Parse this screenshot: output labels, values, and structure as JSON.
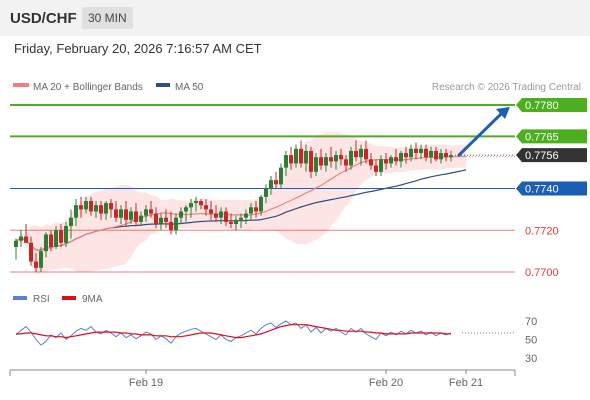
{
  "header": {
    "symbol": "USD/CHF",
    "timeframe": "30 MIN"
  },
  "datetime": "Friday, February 20, 2026 7:16:57 AM CET",
  "legend": {
    "ma20": "MA 20 + Bollinger Bands",
    "ma50": "MA 50",
    "credit": "Research © 2026 Trading Central",
    "rsi": "RSI",
    "rsi_ma": "9MA"
  },
  "colors": {
    "ma20": "#f08080",
    "ma50": "#2f4f7f",
    "band_fill": "#fde0e0",
    "bull": "#2e7d32",
    "bear": "#c62828",
    "resistance": "#4caf20",
    "pivot": "#1a5fb4",
    "support": "#e53935",
    "current": "#333333",
    "rsi": "#5b7fd4",
    "rsi_ma": "#e01010",
    "arrow": "#1a5fb4"
  },
  "chart_data": {
    "type": "candlestick",
    "ylim": [
      0.769,
      0.7785
    ],
    "x_ticks": [
      {
        "label": "Feb 19",
        "index": 26
      },
      {
        "label": "Feb 20",
        "index": 74
      },
      {
        "label": "Feb 21",
        "index": 90
      }
    ],
    "levels": [
      {
        "value": 0.778,
        "label": "0.7780",
        "kind": "resistance"
      },
      {
        "value": 0.7765,
        "label": "0.7765",
        "kind": "resistance"
      },
      {
        "value": 0.7756,
        "label": "0.7756",
        "kind": "current"
      },
      {
        "value": 0.774,
        "label": "0.7740",
        "kind": "pivot"
      },
      {
        "value": 0.772,
        "label": "0.7720",
        "kind": "support"
      },
      {
        "value": 0.77,
        "label": "0.7700",
        "kind": "support"
      }
    ],
    "candles": [
      [
        0.7712,
        0.7716,
        0.7706,
        0.7715
      ],
      [
        0.7715,
        0.772,
        0.7712,
        0.7717
      ],
      [
        0.7717,
        0.7723,
        0.7714,
        0.7714
      ],
      [
        0.7714,
        0.7717,
        0.7703,
        0.7705
      ],
      [
        0.7705,
        0.7709,
        0.77,
        0.7702
      ],
      [
        0.7702,
        0.7712,
        0.77,
        0.771
      ],
      [
        0.771,
        0.7719,
        0.7707,
        0.7718
      ],
      [
        0.7718,
        0.772,
        0.771,
        0.7712
      ],
      [
        0.7712,
        0.7722,
        0.7711,
        0.772
      ],
      [
        0.772,
        0.7723,
        0.7712,
        0.7714
      ],
      [
        0.7714,
        0.7724,
        0.7712,
        0.7722
      ],
      [
        0.7722,
        0.773,
        0.7716,
        0.7726
      ],
      [
        0.7726,
        0.7735,
        0.7722,
        0.7732
      ],
      [
        0.7732,
        0.7736,
        0.7726,
        0.773
      ],
      [
        0.773,
        0.7736,
        0.7728,
        0.7734
      ],
      [
        0.7734,
        0.7736,
        0.7727,
        0.7729
      ],
      [
        0.7729,
        0.7734,
        0.7726,
        0.7732
      ],
      [
        0.7732,
        0.7734,
        0.7725,
        0.7728
      ],
      [
        0.7728,
        0.7734,
        0.7725,
        0.7733
      ],
      [
        0.7733,
        0.7735,
        0.7726,
        0.773
      ],
      [
        0.773,
        0.7734,
        0.7724,
        0.7726
      ],
      [
        0.7726,
        0.7732,
        0.7723,
        0.773
      ],
      [
        0.773,
        0.7734,
        0.7722,
        0.7725
      ],
      [
        0.7725,
        0.7731,
        0.7723,
        0.7729
      ],
      [
        0.7729,
        0.7733,
        0.7722,
        0.7724
      ],
      [
        0.7724,
        0.7729,
        0.7722,
        0.7727
      ],
      [
        0.7727,
        0.7732,
        0.7724,
        0.773
      ],
      [
        0.773,
        0.7734,
        0.7726,
        0.7728
      ],
      [
        0.7728,
        0.7731,
        0.7721,
        0.7723
      ],
      [
        0.7723,
        0.7728,
        0.772,
        0.7726
      ],
      [
        0.7726,
        0.773,
        0.7721,
        0.7724
      ],
      [
        0.7724,
        0.7729,
        0.7718,
        0.772
      ],
      [
        0.772,
        0.7728,
        0.7718,
        0.7726
      ],
      [
        0.7726,
        0.7731,
        0.7723,
        0.7729
      ],
      [
        0.7729,
        0.7732,
        0.7724,
        0.7731
      ],
      [
        0.7731,
        0.7735,
        0.7726,
        0.7733
      ],
      [
        0.7733,
        0.7736,
        0.7729,
        0.7734
      ],
      [
        0.7734,
        0.7735,
        0.773,
        0.7732
      ],
      [
        0.7732,
        0.7735,
        0.7727,
        0.773
      ],
      [
        0.773,
        0.7734,
        0.7725,
        0.7728
      ],
      [
        0.7728,
        0.7732,
        0.7724,
        0.7726
      ],
      [
        0.7726,
        0.7731,
        0.7723,
        0.7729
      ],
      [
        0.7729,
        0.7731,
        0.7722,
        0.7724
      ],
      [
        0.7724,
        0.7728,
        0.7721,
        0.7723
      ],
      [
        0.7723,
        0.7727,
        0.772,
        0.7725
      ],
      [
        0.7725,
        0.7728,
        0.7721,
        0.7726
      ],
      [
        0.7726,
        0.773,
        0.7723,
        0.7728
      ],
      [
        0.7728,
        0.7733,
        0.7725,
        0.7731
      ],
      [
        0.7731,
        0.7734,
        0.7726,
        0.7729
      ],
      [
        0.7729,
        0.7737,
        0.7727,
        0.7736
      ],
      [
        0.7736,
        0.7742,
        0.7733,
        0.774
      ],
      [
        0.774,
        0.7746,
        0.7737,
        0.7744
      ],
      [
        0.7744,
        0.7748,
        0.774,
        0.7742
      ],
      [
        0.7742,
        0.7752,
        0.774,
        0.775
      ],
      [
        0.775,
        0.7758,
        0.7746,
        0.7756
      ],
      [
        0.7756,
        0.776,
        0.7749,
        0.7752
      ],
      [
        0.7752,
        0.7761,
        0.775,
        0.7759
      ],
      [
        0.7759,
        0.7763,
        0.775,
        0.7752
      ],
      [
        0.7752,
        0.7761,
        0.7748,
        0.7758
      ],
      [
        0.7758,
        0.776,
        0.7745,
        0.7748
      ],
      [
        0.7748,
        0.7757,
        0.7746,
        0.7755
      ],
      [
        0.7755,
        0.7759,
        0.7749,
        0.7751
      ],
      [
        0.7751,
        0.7757,
        0.7748,
        0.7755
      ],
      [
        0.7755,
        0.776,
        0.775,
        0.7753
      ],
      [
        0.7753,
        0.7758,
        0.7749,
        0.7756
      ],
      [
        0.7756,
        0.7759,
        0.7751,
        0.7754
      ],
      [
        0.7754,
        0.7756,
        0.7748,
        0.7751
      ],
      [
        0.7751,
        0.776,
        0.7749,
        0.7758
      ],
      [
        0.7758,
        0.7763,
        0.7753,
        0.7755
      ],
      [
        0.7755,
        0.7761,
        0.7751,
        0.7759
      ],
      [
        0.7759,
        0.7763,
        0.7752,
        0.7754
      ],
      [
        0.7754,
        0.7757,
        0.7749,
        0.7751
      ],
      [
        0.7751,
        0.7754,
        0.7746,
        0.7748
      ],
      [
        0.7748,
        0.7756,
        0.7746,
        0.7754
      ],
      [
        0.7754,
        0.7757,
        0.7749,
        0.7752
      ],
      [
        0.7752,
        0.7756,
        0.775,
        0.7755
      ],
      [
        0.7755,
        0.7759,
        0.7751,
        0.7753
      ],
      [
        0.7753,
        0.7758,
        0.775,
        0.7757
      ],
      [
        0.7757,
        0.776,
        0.7752,
        0.7755
      ],
      [
        0.7755,
        0.7761,
        0.7753,
        0.7759
      ],
      [
        0.7759,
        0.7762,
        0.7754,
        0.7757
      ],
      [
        0.7757,
        0.7761,
        0.7754,
        0.7759
      ],
      [
        0.7759,
        0.7761,
        0.7753,
        0.7755
      ],
      [
        0.7755,
        0.776,
        0.7752,
        0.7758
      ],
      [
        0.7758,
        0.776,
        0.7753,
        0.7754
      ],
      [
        0.7754,
        0.7759,
        0.7752,
        0.7757
      ],
      [
        0.7757,
        0.7759,
        0.7753,
        0.7755
      ],
      [
        0.7755,
        0.7758,
        0.7753,
        0.7756
      ]
    ],
    "rsi": {
      "ylim": [
        20,
        80
      ],
      "ticks": [
        70,
        50,
        30
      ],
      "values": [
        55,
        60,
        64,
        58,
        50,
        44,
        48,
        55,
        52,
        57,
        50,
        54,
        59,
        62,
        60,
        64,
        58,
        56,
        60,
        57,
        53,
        57,
        52,
        55,
        51,
        54,
        58,
        56,
        50,
        54,
        51,
        46,
        53,
        57,
        59,
        61,
        62,
        59,
        56,
        53,
        50,
        55,
        50,
        48,
        52,
        54,
        57,
        60,
        56,
        62,
        66,
        68,
        63,
        67,
        70,
        66,
        68,
        62,
        66,
        58,
        63,
        57,
        62,
        59,
        62,
        58,
        55,
        62,
        58,
        62,
        56,
        53,
        50,
        57,
        54,
        58,
        55,
        59,
        56,
        60,
        57,
        59,
        55,
        58,
        54,
        57,
        55,
        57
      ],
      "ma9": [
        56,
        56,
        57,
        57,
        56,
        55,
        54,
        54,
        53,
        53,
        52,
        53,
        54,
        55,
        56,
        57,
        58,
        58,
        58,
        58,
        58,
        57,
        57,
        56,
        56,
        55,
        55,
        55,
        54,
        54,
        54,
        53,
        53,
        53,
        54,
        55,
        56,
        57,
        57,
        57,
        56,
        55,
        54,
        53,
        52,
        52,
        53,
        54,
        55,
        56,
        58,
        60,
        62,
        64,
        65,
        66,
        66,
        66,
        66,
        65,
        64,
        63,
        62,
        61,
        60,
        60,
        59,
        59,
        59,
        59,
        58,
        58,
        57,
        57,
        56,
        56,
        56,
        56,
        56,
        57,
        57,
        57,
        57,
        57,
        57,
        57,
        56,
        56
      ]
    }
  }
}
